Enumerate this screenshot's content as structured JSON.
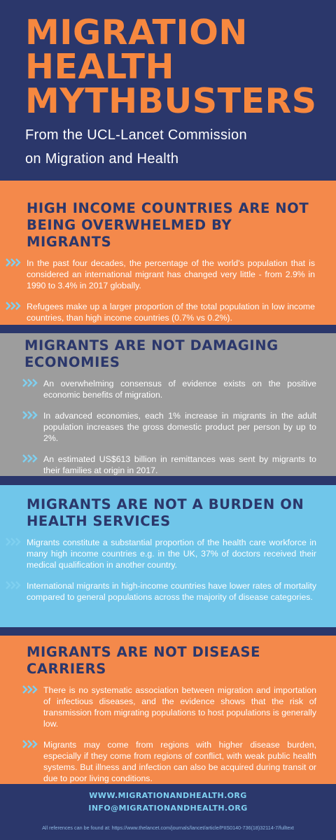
{
  "header": {
    "title": [
      "MIGRATION",
      "HEALTH",
      "MYTHBUSTERS"
    ],
    "subtitle": "From the UCL-Lancet Commission on Migration and Health"
  },
  "sections": [
    {
      "heading": "HIGH INCOME COUNTRIES ARE NOT BEING OVERWHELMED BY MIGRANTS",
      "bullets": [
        "In the past four decades, the percentage of the world's population that is considered an international migrant has changed very little - from 2.9% in 1990 to 3.4% in 2017 globally.",
        "Refugees make up a larger proportion of the total population in low income countries, than high income countries (0.7% vs 0.2%)."
      ]
    },
    {
      "heading": "MIGRANTS ARE NOT DAMAGING ECONOMIES",
      "bullets": [
        "An overwhelming consensus of evidence exists on the positive economic benefits of migration.",
        "In advanced economies, each 1% increase in migrants in the adult population increases the gross domestic product per person by up to 2%.",
        "An estimated US$613 billion in remittances was sent by migrants to their families at origin in 2017."
      ]
    },
    {
      "heading": "MIGRANTS ARE NOT A BURDEN ON HEALTH SERVICES",
      "bullets": [
        "Migrants constitute a substantial proportion of the health care workforce in many high income countries e.g. in the UK, 37% of doctors received their medical qualification in another country.",
        "International migrants in high-income countries have lower rates of mortality compared to general populations across the majority of disease categories."
      ]
    },
    {
      "heading": "MIGRANTS ARE NOT DISEASE CARRIERS",
      "bullets": [
        "There is no systematic association between migration and importation of infectious diseases, and the evidence shows that the risk of transmission from migrating populations to host populations is generally low.",
        "Migrants may come from regions with higher disease burden, especially if they come from regions of conflict, with weak public health systems. But illness and infection can also be acquired during transit or due to poor living conditions."
      ]
    }
  ],
  "footer": {
    "links": [
      "WWW.MIGRATIONANDHEALTH.ORG",
      "INFO@MIGRATIONANDHEALTH.ORG"
    ],
    "references": "All references can be found at:  https://www.thelancet.com/journals/lancet/article/PIIS0140-736(18)32114-7/fulltext"
  }
}
